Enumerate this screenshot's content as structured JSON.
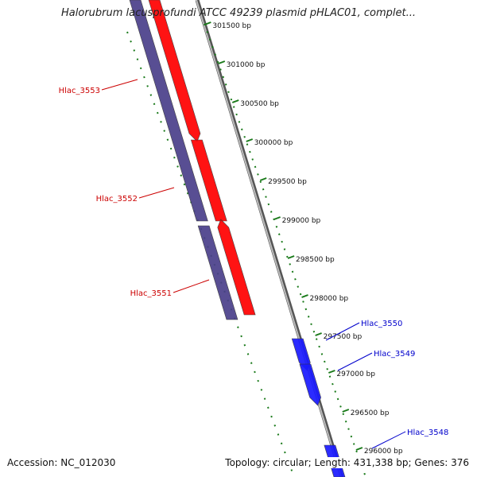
{
  "title": "Halorubrum lacusprofundi ATCC 49239 plasmid pHLAC01, complet...",
  "footer": {
    "accession": "Accession: NC_012030",
    "summary": "Topology: circular; Length: 431,338 bp; Genes: 376"
  },
  "colors": {
    "forward_cds": "#ff0000",
    "forward_cds_alt": "#1a1aff",
    "reverse_cds": "#4a3f8a",
    "backbone": "#888888",
    "ruler": "#1a7a1a",
    "label_red": "#cc0000",
    "label_blue": "#0000cc"
  },
  "ticks": [
    {
      "label": "301500 bp"
    },
    {
      "label": "301000 bp"
    },
    {
      "label": "300500 bp"
    },
    {
      "label": "300000 bp"
    },
    {
      "label": "299500 bp"
    },
    {
      "label": "299000 bp"
    },
    {
      "label": "298500 bp"
    },
    {
      "label": "298000 bp"
    },
    {
      "label": "297500 bp"
    },
    {
      "label": "297000 bp"
    },
    {
      "label": "296500 bp"
    },
    {
      "label": "296000 bp"
    }
  ],
  "genes": [
    {
      "name": "Hlac_3553",
      "strand": "reverse",
      "color": "label_red"
    },
    {
      "name": "Hlac_3552",
      "strand": "reverse",
      "color": "label_red"
    },
    {
      "name": "Hlac_3551",
      "strand": "reverse",
      "color": "label_red"
    },
    {
      "name": "Hlac_3550",
      "strand": "forward",
      "color": "label_blue"
    },
    {
      "name": "Hlac_3549",
      "strand": "forward",
      "color": "label_blue"
    },
    {
      "name": "Hlac_3548",
      "strand": "forward",
      "color": "label_blue"
    }
  ]
}
